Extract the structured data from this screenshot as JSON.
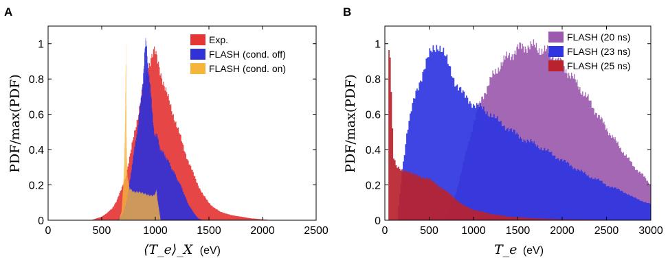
{
  "colors": {
    "exp": "#e53636",
    "flash_off": "#3131d6",
    "flash_on": "#f5b53d",
    "flash_20": "#9b5aad",
    "flash_23": "#2f35e0",
    "flash_25": "#b8232e"
  },
  "chart_data": [
    {
      "type": "area",
      "panel_label": "A",
      "title": "",
      "xlabel_math": "⟨T_e⟩_X",
      "xlabel_unit": "(eV)",
      "ylabel": "PDF/max(PDF)",
      "xlim": [
        0,
        2500
      ],
      "ylim": [
        0,
        1.1
      ],
      "xticks": [
        0,
        500,
        1000,
        1500,
        2000,
        2500
      ],
      "yticks": [
        0,
        0.2,
        0.4,
        0.6,
        0.8,
        1
      ],
      "legend_position": "top-right",
      "grid": false,
      "series": [
        {
          "name": "Exp.",
          "color_key": "exp",
          "points": [
            [
              400,
              0
            ],
            [
              450,
              0.01
            ],
            [
              500,
              0.02
            ],
            [
              550,
              0.04
            ],
            [
              600,
              0.07
            ],
            [
              640,
              0.11
            ],
            [
              680,
              0.17
            ],
            [
              720,
              0.24
            ],
            [
              760,
              0.35
            ],
            [
              800,
              0.48
            ],
            [
              840,
              0.6
            ],
            [
              870,
              0.7
            ],
            [
              900,
              0.78
            ],
            [
              930,
              0.86
            ],
            [
              960,
              0.93
            ],
            [
              990,
              0.96
            ],
            [
              1020,
              0.9
            ],
            [
              1060,
              0.82
            ],
            [
              1100,
              0.73
            ],
            [
              1140,
              0.65
            ],
            [
              1180,
              0.58
            ],
            [
              1220,
              0.5
            ],
            [
              1260,
              0.42
            ],
            [
              1300,
              0.35
            ],
            [
              1350,
              0.27
            ],
            [
              1400,
              0.2
            ],
            [
              1450,
              0.14
            ],
            [
              1500,
              0.1
            ],
            [
              1550,
              0.07
            ],
            [
              1600,
              0.05
            ],
            [
              1700,
              0.03
            ],
            [
              1800,
              0.02
            ],
            [
              1900,
              0.01
            ],
            [
              2000,
              0.005
            ],
            [
              2100,
              0
            ]
          ]
        },
        {
          "name": "FLASH (cond. off)",
          "color_key": "flash_off",
          "points": [
            [
              650,
              0
            ],
            [
              700,
              0.04
            ],
            [
              740,
              0.13
            ],
            [
              780,
              0.3
            ],
            [
              810,
              0.42
            ],
            [
              840,
              0.55
            ],
            [
              870,
              0.7
            ],
            [
              890,
              0.85
            ],
            [
              905,
              0.98
            ],
            [
              915,
              1.0
            ],
            [
              930,
              0.9
            ],
            [
              950,
              0.78
            ],
            [
              970,
              0.62
            ],
            [
              990,
              0.5
            ],
            [
              1020,
              0.47
            ],
            [
              1050,
              0.4
            ],
            [
              1100,
              0.36
            ],
            [
              1150,
              0.3
            ],
            [
              1200,
              0.24
            ],
            [
              1250,
              0.18
            ],
            [
              1300,
              0.1
            ],
            [
              1350,
              0.05
            ],
            [
              1400,
              0.01
            ],
            [
              1450,
              0
            ]
          ]
        },
        {
          "name": "FLASH (cond. on)",
          "color_key": "flash_on",
          "points": [
            [
              660,
              0
            ],
            [
              685,
              0.05
            ],
            [
              700,
              0.18
            ],
            [
              710,
              0.35
            ],
            [
              718,
              0.55
            ],
            [
              723,
              0.8
            ],
            [
              727,
              1.0
            ],
            [
              732,
              0.45
            ],
            [
              740,
              0.25
            ],
            [
              760,
              0.18
            ],
            [
              800,
              0.16
            ],
            [
              850,
              0.16
            ],
            [
              900,
              0.15
            ],
            [
              950,
              0.14
            ],
            [
              990,
              0.14
            ],
            [
              1010,
              0.17
            ],
            [
              1020,
              0.12
            ],
            [
              1035,
              0.06
            ],
            [
              1050,
              0
            ]
          ]
        }
      ]
    },
    {
      "type": "area",
      "panel_label": "B",
      "title": "",
      "xlabel_math": "T_e",
      "xlabel_unit": "(eV)",
      "ylabel": "PDF/max(PDF)",
      "xlim": [
        0,
        3000
      ],
      "ylim": [
        0,
        1.1
      ],
      "xticks": [
        0,
        500,
        1000,
        1500,
        2000,
        2500,
        3000
      ],
      "yticks": [
        0,
        0.2,
        0.4,
        0.6,
        0.8,
        1
      ],
      "legend_position": "top-right",
      "grid": false,
      "series": [
        {
          "name": "FLASH (20 ns)",
          "color_key": "flash_20",
          "points": [
            [
              700,
              0.02
            ],
            [
              800,
              0.15
            ],
            [
              900,
              0.35
            ],
            [
              1000,
              0.55
            ],
            [
              1100,
              0.7
            ],
            [
              1200,
              0.8
            ],
            [
              1300,
              0.88
            ],
            [
              1400,
              0.93
            ],
            [
              1500,
              0.97
            ],
            [
              1600,
              0.99
            ],
            [
              1700,
              0.98
            ],
            [
              1800,
              0.96
            ],
            [
              1900,
              0.93
            ],
            [
              2000,
              0.88
            ],
            [
              2100,
              0.82
            ],
            [
              2200,
              0.75
            ],
            [
              2300,
              0.68
            ],
            [
              2400,
              0.6
            ],
            [
              2500,
              0.52
            ],
            [
              2600,
              0.45
            ],
            [
              2700,
              0.38
            ],
            [
              2800,
              0.31
            ],
            [
              2900,
              0.26
            ],
            [
              3000,
              0.2
            ]
          ]
        },
        {
          "name": "FLASH (23 ns)",
          "color_key": "flash_23",
          "points": [
            [
              150,
              0.05
            ],
            [
              200,
              0.3
            ],
            [
              250,
              0.5
            ],
            [
              300,
              0.62
            ],
            [
              350,
              0.72
            ],
            [
              400,
              0.8
            ],
            [
              450,
              0.87
            ],
            [
              500,
              0.93
            ],
            [
              550,
              0.97
            ],
            [
              600,
              1.0
            ],
            [
              650,
              0.96
            ],
            [
              700,
              0.9
            ],
            [
              750,
              0.84
            ],
            [
              800,
              0.78
            ],
            [
              900,
              0.7
            ],
            [
              1000,
              0.66
            ],
            [
              1100,
              0.63
            ],
            [
              1200,
              0.6
            ],
            [
              1300,
              0.55
            ],
            [
              1400,
              0.52
            ],
            [
              1500,
              0.48
            ],
            [
              1600,
              0.45
            ],
            [
              1700,
              0.43
            ],
            [
              1800,
              0.4
            ],
            [
              1900,
              0.37
            ],
            [
              2000,
              0.34
            ],
            [
              2100,
              0.31
            ],
            [
              2200,
              0.28
            ],
            [
              2300,
              0.25
            ],
            [
              2400,
              0.23
            ],
            [
              2500,
              0.2
            ],
            [
              2600,
              0.18
            ],
            [
              2700,
              0.16
            ],
            [
              2800,
              0.13
            ],
            [
              2900,
              0.11
            ],
            [
              3000,
              0.09
            ]
          ]
        },
        {
          "name": "FLASH (25 ns)",
          "color_key": "flash_25",
          "points": [
            [
              40,
              0.98
            ],
            [
              60,
              0.95
            ],
            [
              80,
              0.6
            ],
            [
              100,
              0.35
            ],
            [
              130,
              0.3
            ],
            [
              180,
              0.29
            ],
            [
              250,
              0.28
            ],
            [
              300,
              0.26
            ],
            [
              400,
              0.25
            ],
            [
              500,
              0.23
            ],
            [
              600,
              0.2
            ],
            [
              700,
              0.16
            ],
            [
              800,
              0.12
            ],
            [
              900,
              0.08
            ],
            [
              1000,
              0.06
            ],
            [
              1200,
              0.035
            ],
            [
              1400,
              0.02
            ],
            [
              1700,
              0.01
            ],
            [
              2000,
              0.005
            ],
            [
              3000,
              0
            ]
          ]
        }
      ]
    }
  ]
}
